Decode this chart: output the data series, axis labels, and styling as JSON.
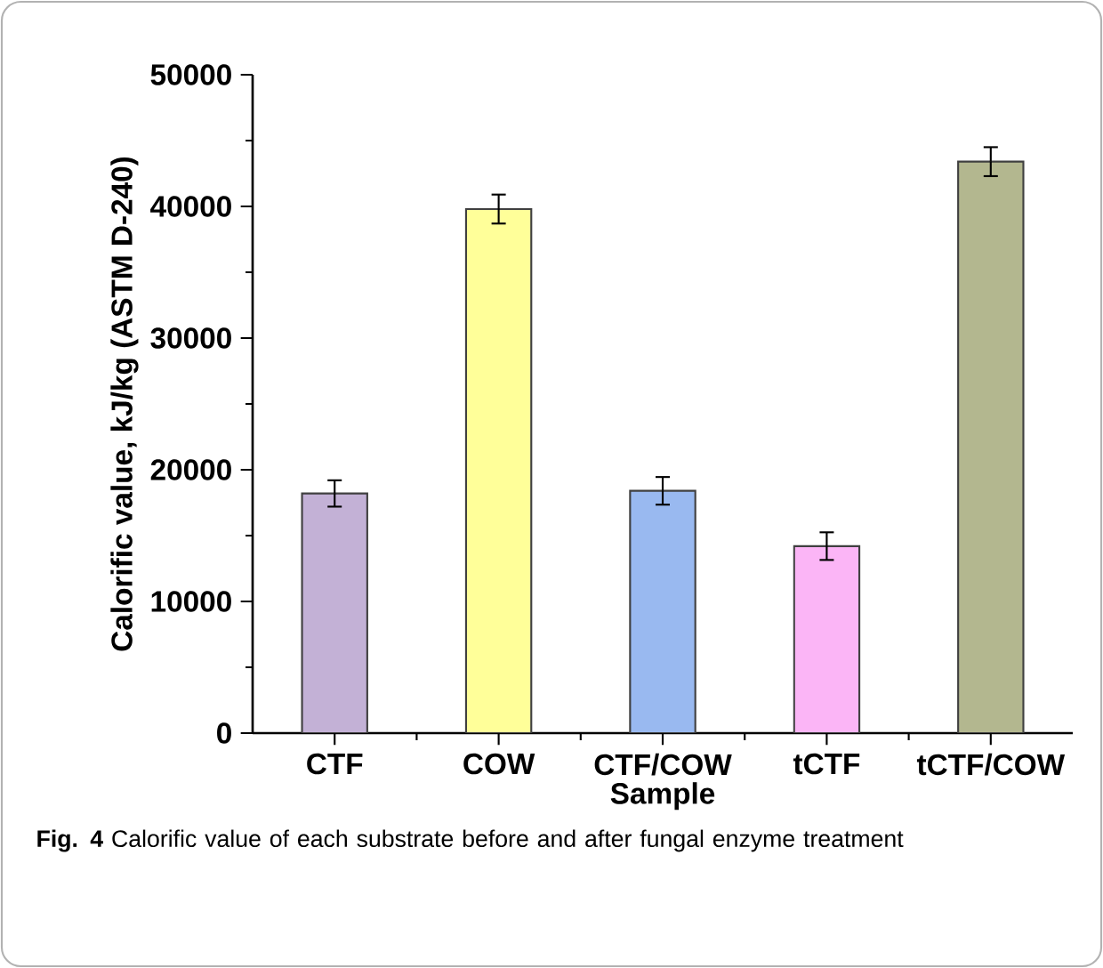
{
  "chart_data": {
    "type": "bar",
    "xlabel": "Sample",
    "ylabel": "Calorific value, kJ/kg (ASTM D-240)",
    "categories": [
      "CTF",
      "COW",
      "CTF/COW",
      "tCTF",
      "tCTF/COW"
    ],
    "values": [
      18200,
      39800,
      18400,
      14200,
      43400
    ],
    "errors": [
      1000,
      1100,
      1050,
      1050,
      1100
    ],
    "colors": [
      "#c3b1d6",
      "#ffff99",
      "#99b9f0",
      "#fbb5f6",
      "#b3b78f"
    ],
    "ylim": [
      0,
      50000
    ],
    "yticks": [
      0,
      10000,
      20000,
      30000,
      40000,
      50000
    ],
    "annotations": [
      "**Fig. 4** Calorific value of each substrate before and after fungal enzyme treatment"
    ]
  }
}
